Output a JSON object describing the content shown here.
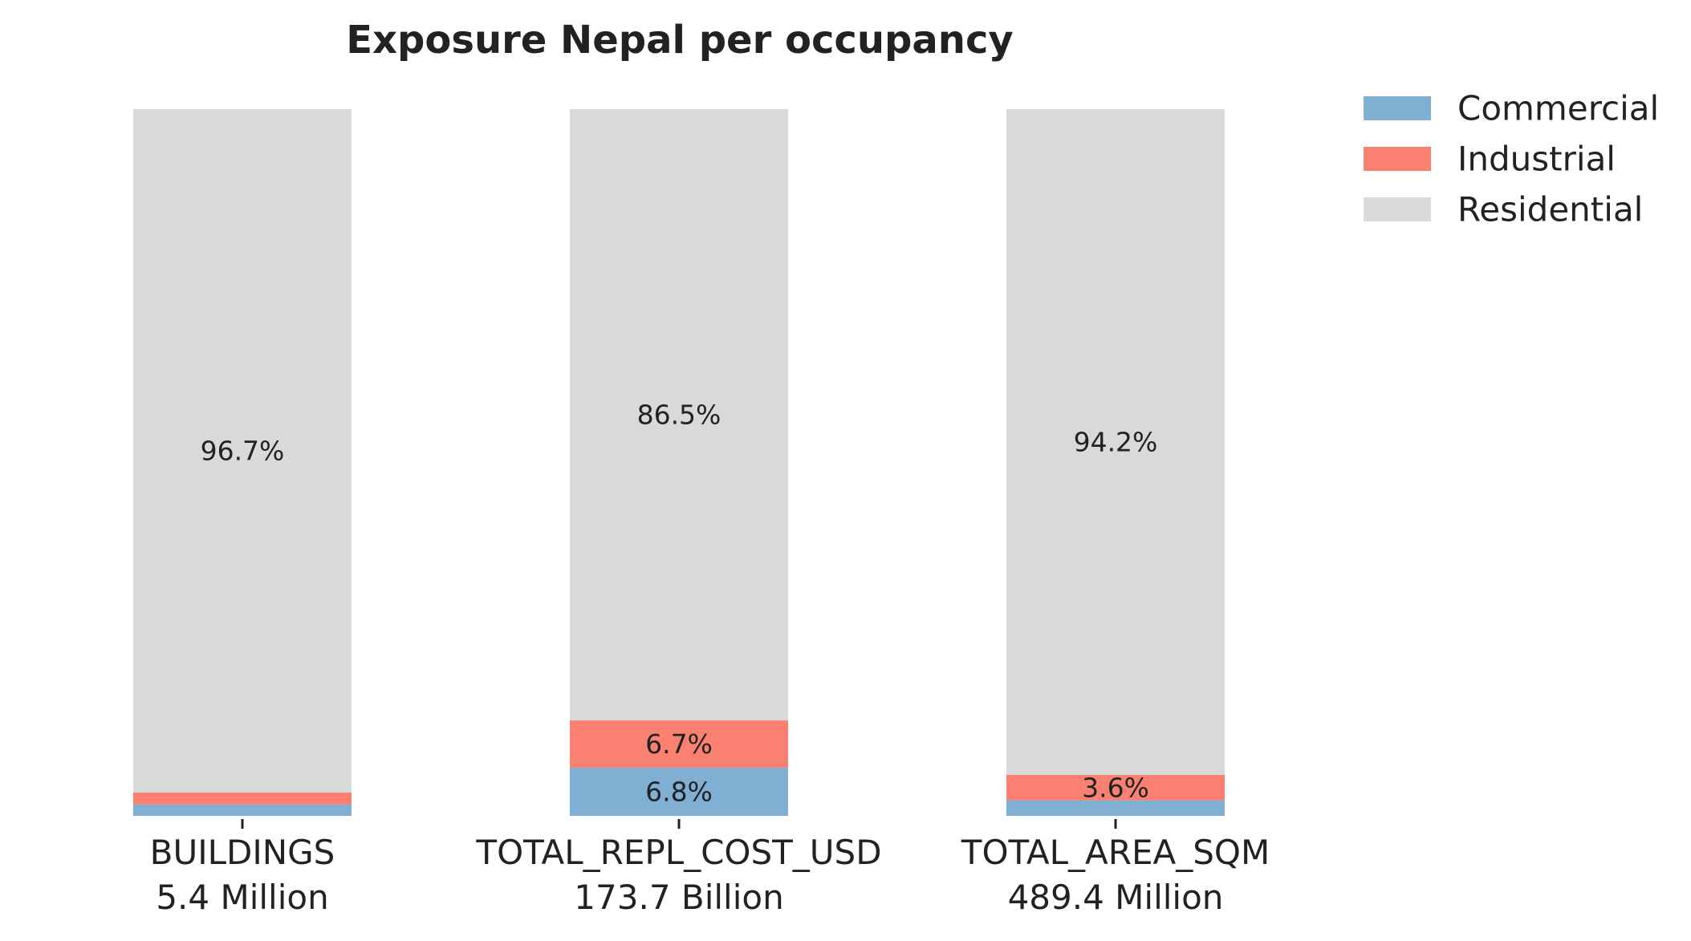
{
  "chart_data": {
    "type": "bar",
    "stacked": true,
    "normalized_percent": true,
    "title": "Exposure Nepal per occupancy",
    "xlabel": "",
    "ylabel": "",
    "ylim": [
      0,
      100
    ],
    "grid": false,
    "legend_position": "top-right, outside plot",
    "categories": [
      "BUILDINGS",
      "TOTAL_REPL_COST_USD",
      "TOTAL_AREA_SQM"
    ],
    "category_totals": [
      "5.4 Million",
      "173.7 Billion",
      "489.4 Million"
    ],
    "series": [
      {
        "name": "Commercial",
        "color": "#7fb0d4",
        "values": [
          1.6,
          6.8,
          2.2
        ],
        "labels": [
          "",
          "6.8%",
          ""
        ]
      },
      {
        "name": "Industrial",
        "color": "#fa8072",
        "values": [
          1.7,
          6.7,
          3.6
        ],
        "labels": [
          "",
          "6.7%",
          "3.6%"
        ]
      },
      {
        "name": "Residential",
        "color": "#d9d9d9",
        "values": [
          96.7,
          86.5,
          94.2
        ],
        "labels": [
          "96.7%",
          "86.5%",
          "94.2%"
        ]
      }
    ]
  }
}
